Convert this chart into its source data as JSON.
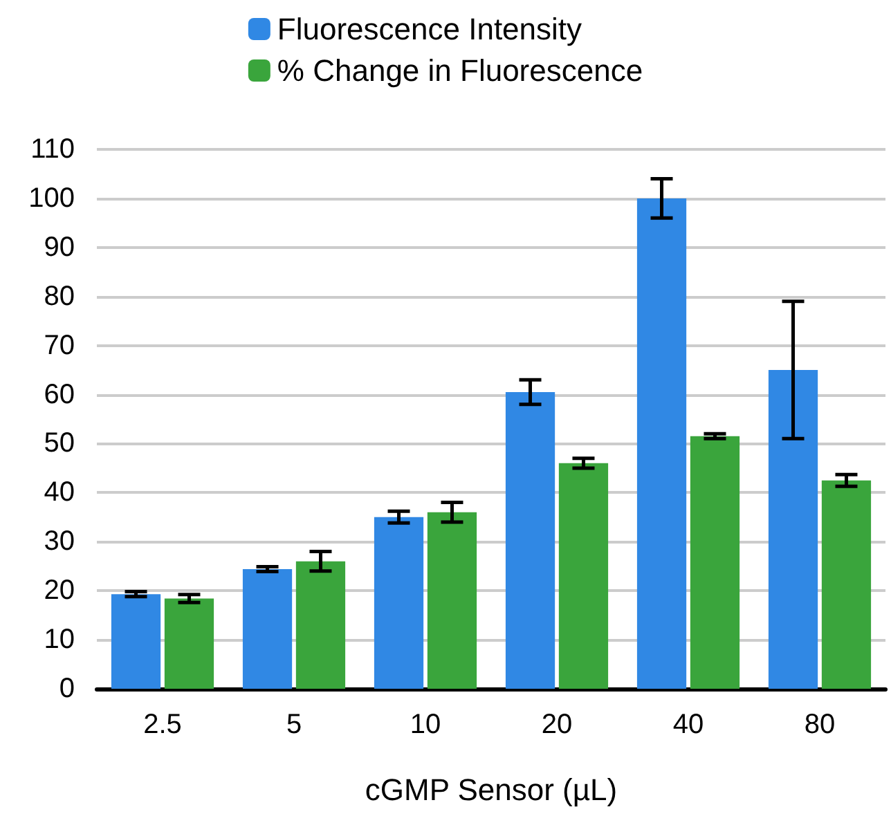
{
  "chart_data": {
    "type": "bar",
    "xlabel": "cGMP Sensor (µL)",
    "categories": [
      "2.5",
      "5",
      "10",
      "20",
      "40",
      "80"
    ],
    "series": [
      {
        "name": "Fluorescence Intensity",
        "color": "#3088e4",
        "values": [
          19.3,
          24.4,
          35,
          60.5,
          100,
          65
        ],
        "errors": [
          0.5,
          0.5,
          1.2,
          2.5,
          4,
          14
        ]
      },
      {
        "name": "% Change in Fluorescence",
        "color": "#3aa53c",
        "values": [
          18.4,
          26,
          36,
          46,
          51.5,
          42.5
        ],
        "errors": [
          0.8,
          2,
          2,
          1,
          0.5,
          1.2
        ]
      }
    ],
    "ylim": [
      0,
      110
    ],
    "yticks": [
      0,
      10,
      20,
      30,
      40,
      50,
      60,
      70,
      80,
      90,
      100,
      110
    ],
    "grid": "y",
    "legend": "top"
  }
}
